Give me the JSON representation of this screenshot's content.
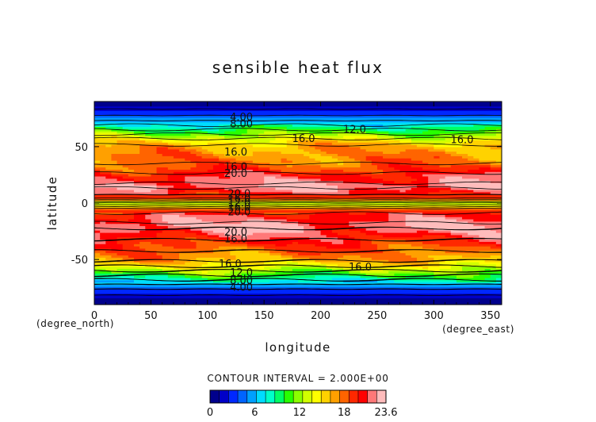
{
  "chart_data": {
    "type": "heatmap",
    "title": "sensible heat flux",
    "xlabel": "longitude",
    "ylabel": "latitude",
    "x_unit": "(degree_east)",
    "y_unit": "(degree_north)",
    "xlim": [
      0,
      360
    ],
    "ylim": [
      -90,
      90
    ],
    "xticks": [
      0,
      50,
      100,
      150,
      200,
      250,
      300,
      350
    ],
    "yticks": [
      -50,
      0,
      50
    ],
    "contour_interval_text": "CONTOUR INTERVAL = 2.000E+00",
    "colorbar": {
      "min": 0,
      "max": 23.6,
      "tick_labels": [
        "0",
        "6",
        "12",
        "18",
        "23.6"
      ],
      "tick_values": [
        0,
        6,
        12,
        18,
        23.6
      ],
      "colors": [
        "#00008c",
        "#0000c8",
        "#0028ff",
        "#0064ff",
        "#00a0ff",
        "#00dcff",
        "#00ffc8",
        "#00ff64",
        "#28ff00",
        "#8cff00",
        "#d2ff00",
        "#ffff00",
        "#ffd200",
        "#ffa000",
        "#ff6400",
        "#ff2800",
        "#ff0000",
        "#ff7878",
        "#ffbcbc"
      ]
    },
    "zonal_profile": {
      "lat": [
        -90,
        -85,
        -80,
        -75,
        -70,
        -65,
        -60,
        -55,
        -50,
        -45,
        -40,
        -35,
        -30,
        -25,
        -20,
        -15,
        -10,
        -5,
        0,
        5,
        10,
        15,
        20,
        25,
        30,
        35,
        40,
        45,
        50,
        55,
        60,
        65,
        70,
        75,
        80,
        85,
        90
      ],
      "values": [
        0.5,
        1,
        2.5,
        4.5,
        7,
        9.5,
        12,
        14.5,
        16.5,
        17.5,
        18.5,
        19.5,
        20.5,
        21.5,
        22.5,
        21.5,
        20.5,
        18,
        12,
        19,
        21,
        22.5,
        21.5,
        20.5,
        19,
        18,
        17.5,
        17,
        16.5,
        15,
        12.5,
        10,
        7.5,
        5,
        3,
        1.5,
        0.5
      ]
    },
    "contour_labels": [
      {
        "text": "4.00",
        "lon": 130,
        "lat": 76
      },
      {
        "text": "8.00",
        "lon": 130,
        "lat": 70
      },
      {
        "text": "12.0",
        "lon": 230,
        "lat": 65
      },
      {
        "text": "16.0",
        "lon": 185,
        "lat": 57
      },
      {
        "text": "16.0",
        "lon": 325,
        "lat": 56
      },
      {
        "text": "16.0",
        "lon": 125,
        "lat": 45
      },
      {
        "text": "16.0",
        "lon": 125,
        "lat": 32
      },
      {
        "text": "20.0",
        "lon": 125,
        "lat": 26
      },
      {
        "text": "20.0",
        "lon": 128,
        "lat": 8
      },
      {
        "text": "16.0",
        "lon": 128,
        "lat": 4
      },
      {
        "text": "12.0",
        "lon": 128,
        "lat": 0
      },
      {
        "text": "16.0",
        "lon": 128,
        "lat": -4
      },
      {
        "text": "20.0",
        "lon": 128,
        "lat": -8
      },
      {
        "text": "20.0",
        "lon": 125,
        "lat": -26
      },
      {
        "text": "16.0",
        "lon": 125,
        "lat": -32
      },
      {
        "text": "16.0",
        "lon": 120,
        "lat": -54
      },
      {
        "text": "16.0",
        "lon": 235,
        "lat": -57
      },
      {
        "text": "12.0",
        "lon": 130,
        "lat": -62
      },
      {
        "text": "8.00",
        "lon": 130,
        "lat": -69
      },
      {
        "text": "4.00",
        "lon": 130,
        "lat": -75
      }
    ]
  }
}
